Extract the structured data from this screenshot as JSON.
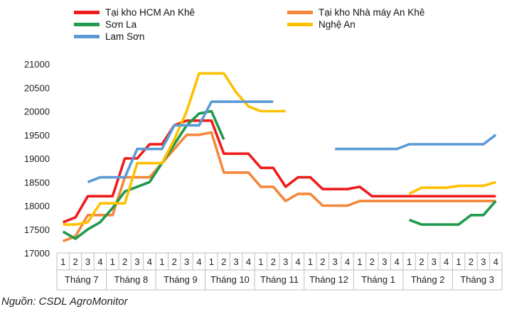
{
  "source": "Nguồn: CSDL AgroMonitor",
  "chart_data": {
    "type": "line",
    "title": "",
    "xlabel": "",
    "ylabel": "",
    "ylim": [
      17000,
      21000
    ],
    "yticks": [
      17000,
      17500,
      18000,
      18500,
      19000,
      19500,
      20000,
      20500,
      21000
    ],
    "grid": false,
    "legend_position": "top",
    "weeks": [
      "1",
      "2",
      "3",
      "4",
      "1",
      "2",
      "3",
      "4",
      "1",
      "2",
      "3",
      "4",
      "1",
      "2",
      "3",
      "4",
      "1",
      "2",
      "3",
      "4",
      "1",
      "2",
      "3",
      "4",
      "1",
      "2",
      "3",
      "4",
      "1",
      "2",
      "3",
      "4",
      "1",
      "2",
      "3",
      "4"
    ],
    "months": [
      "Tháng 7",
      "Tháng 8",
      "Tháng 9",
      "Tháng 10",
      "Tháng 11",
      "Tháng 12",
      "Tháng 1",
      "Tháng 2",
      "Tháng 3"
    ],
    "series": [
      {
        "name": "Tại kho HCM An Khê",
        "color": "#ee1c1c",
        "values": [
          17650,
          17750,
          18200,
          18200,
          18200,
          19000,
          19000,
          19300,
          19300,
          19700,
          19800,
          19800,
          19800,
          19100,
          19100,
          19100,
          18800,
          18800,
          18400,
          18600,
          18600,
          18350,
          18350,
          18350,
          18400,
          18200,
          18200,
          18200,
          18200,
          18200,
          18200,
          18200,
          18200,
          18200,
          18200,
          18200
        ]
      },
      {
        "name": "Tại kho Nhà máy An Khê",
        "color": "#f4873b",
        "values": [
          17250,
          17350,
          17800,
          17800,
          17800,
          18600,
          18600,
          18600,
          18900,
          19200,
          19500,
          19500,
          19550,
          18700,
          18700,
          18700,
          18400,
          18400,
          18100,
          18250,
          18250,
          18000,
          18000,
          18000,
          18100,
          18100,
          18100,
          18100,
          18100,
          18100,
          18100,
          18100,
          18100,
          18100,
          18100,
          18100
        ]
      },
      {
        "name": "Sơn La",
        "color": "#1e9a4c",
        "values": [
          17450,
          17300,
          17500,
          17650,
          17950,
          18300,
          18400,
          18500,
          18900,
          19300,
          19700,
          19950,
          20000,
          19400,
          null,
          null,
          null,
          null,
          null,
          null,
          null,
          null,
          null,
          null,
          null,
          null,
          null,
          null,
          17700,
          17600,
          17600,
          17600,
          17600,
          17800,
          17800,
          18100
        ]
      },
      {
        "name": "Nghệ An",
        "color": "#ffc000",
        "values": [
          17600,
          17600,
          17650,
          18050,
          18050,
          18050,
          18900,
          18900,
          18900,
          19400,
          20000,
          20800,
          20800,
          20800,
          20400,
          20100,
          20000,
          20000,
          20000,
          null,
          null,
          null,
          null,
          null,
          null,
          null,
          null,
          null,
          18250,
          18380,
          18380,
          18380,
          18420,
          18420,
          18420,
          18500
        ]
      },
      {
        "name": "Lam Sơn",
        "color": "#5b9bd5",
        "values": [
          null,
          null,
          18500,
          18600,
          18600,
          18600,
          19200,
          19200,
          19200,
          19700,
          19700,
          19700,
          20200,
          20200,
          20200,
          20200,
          20200,
          20200,
          null,
          null,
          null,
          null,
          19200,
          19200,
          19200,
          19200,
          19200,
          19200,
          19300,
          19300,
          19300,
          19300,
          19300,
          19300,
          19300,
          19500
        ]
      }
    ]
  }
}
